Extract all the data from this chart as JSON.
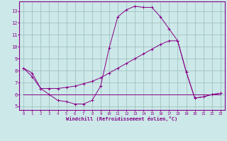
{
  "xlabel": "Windchill (Refroidissement éolien,°C)",
  "xlim": [
    -0.5,
    23.5
  ],
  "ylim": [
    4.7,
    13.8
  ],
  "yticks": [
    5,
    6,
    7,
    8,
    9,
    10,
    11,
    12,
    13
  ],
  "xticks": [
    0,
    1,
    2,
    3,
    4,
    5,
    6,
    7,
    8,
    9,
    10,
    11,
    12,
    13,
    14,
    15,
    16,
    17,
    18,
    19,
    20,
    21,
    22,
    23
  ],
  "background_color": "#cce8e8",
  "line_color": "#880088",
  "grid_color": "#99bbbb",
  "line1_x": [
    0,
    1,
    2,
    3,
    4,
    5,
    6,
    7,
    8,
    9,
    10,
    11,
    12,
    13,
    14,
    15,
    16,
    17,
    18,
    19,
    20,
    21,
    22,
    23
  ],
  "line1_y": [
    8.2,
    7.8,
    6.5,
    6.0,
    5.5,
    5.4,
    5.2,
    5.2,
    5.5,
    6.7,
    9.9,
    12.5,
    13.1,
    13.4,
    13.3,
    13.3,
    12.5,
    11.5,
    10.5,
    7.9,
    5.7,
    5.8,
    6.0,
    6.1
  ],
  "line2_x": [
    0,
    1,
    2,
    3,
    4,
    5,
    6,
    7,
    8,
    9,
    10,
    11,
    12,
    13,
    14,
    15,
    16,
    17,
    18,
    19,
    20,
    21,
    22,
    23
  ],
  "line2_y": [
    8.2,
    7.5,
    6.5,
    6.5,
    6.5,
    6.6,
    6.7,
    6.9,
    7.1,
    7.4,
    7.8,
    8.2,
    8.6,
    9.0,
    9.4,
    9.8,
    10.2,
    10.5,
    10.5,
    7.9,
    5.7,
    5.8,
    6.0,
    6.1
  ],
  "line3_x": [
    0,
    1,
    2,
    3,
    4,
    5,
    6,
    7,
    8,
    9,
    10,
    11,
    12,
    13,
    14,
    15,
    16,
    17,
    18,
    19,
    20,
    21,
    22,
    23
  ],
  "line3_y": [
    6.0,
    6.0,
    6.0,
    6.0,
    6.0,
    6.0,
    6.0,
    6.0,
    6.0,
    6.0,
    6.0,
    6.0,
    6.0,
    6.0,
    6.0,
    6.0,
    6.0,
    6.0,
    6.0,
    6.0,
    6.0,
    6.0,
    6.0,
    6.0
  ]
}
